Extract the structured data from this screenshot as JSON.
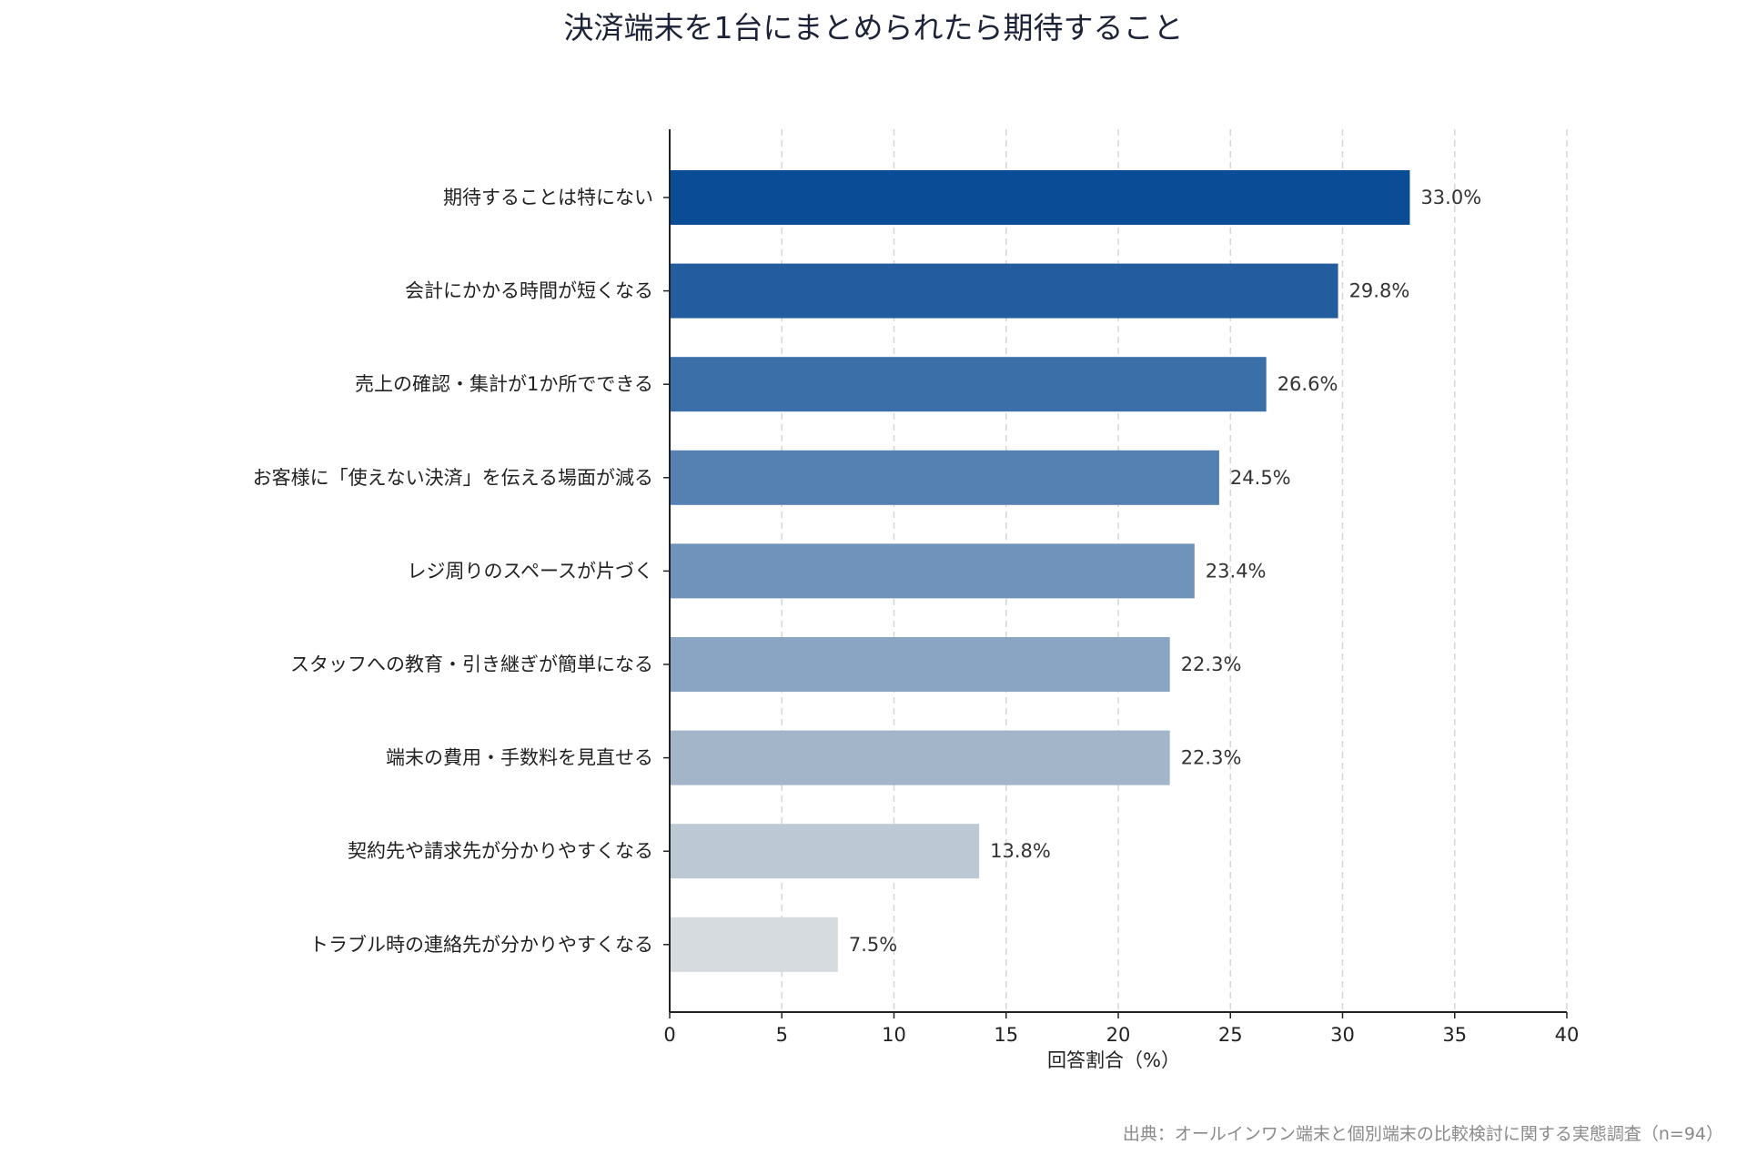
{
  "chart_data": {
    "type": "bar",
    "orientation": "horizontal",
    "title": "決済端末を1台にまとめられたら期待すること",
    "xlabel": "回答割合（%）",
    "ylabel": "",
    "xlim": [
      0,
      40
    ],
    "xticks": [
      0,
      5,
      10,
      15,
      20,
      25,
      30,
      35,
      40
    ],
    "grid": "vertical dashed",
    "categories": [
      "期待することは特にない",
      "会計にかかる時間が短くなる",
      "売上の確認・集計が1か所でできる",
      "お客様に「使えない決済」を伝える場面が減る",
      "レジ周りのスペースが片づく",
      "スタッフへの教育・引き継ぎが簡単になる",
      "端末の費用・手数料を見直せる",
      "契約先や請求先が分かりやすくなる",
      "トラブル時の連絡先が分かりやすくなる"
    ],
    "values": [
      33.0,
      29.8,
      26.6,
      24.5,
      23.4,
      22.3,
      22.3,
      13.8,
      7.5
    ],
    "value_labels": [
      "33.0%",
      "29.8%",
      "26.6%",
      "24.5%",
      "23.4%",
      "22.3%",
      "22.3%",
      "13.8%",
      "7.5%"
    ],
    "colors": [
      "#0b4c97",
      "#235d9f",
      "#3a6fa8",
      "#5580b2",
      "#7093bb",
      "#89a5c3",
      "#a2b5c9",
      "#bcc8d3",
      "#d5dbdf"
    ]
  },
  "source_note": "出典：オールインワン端末と個別端末の比較検討に関する実態調査（n=94）"
}
